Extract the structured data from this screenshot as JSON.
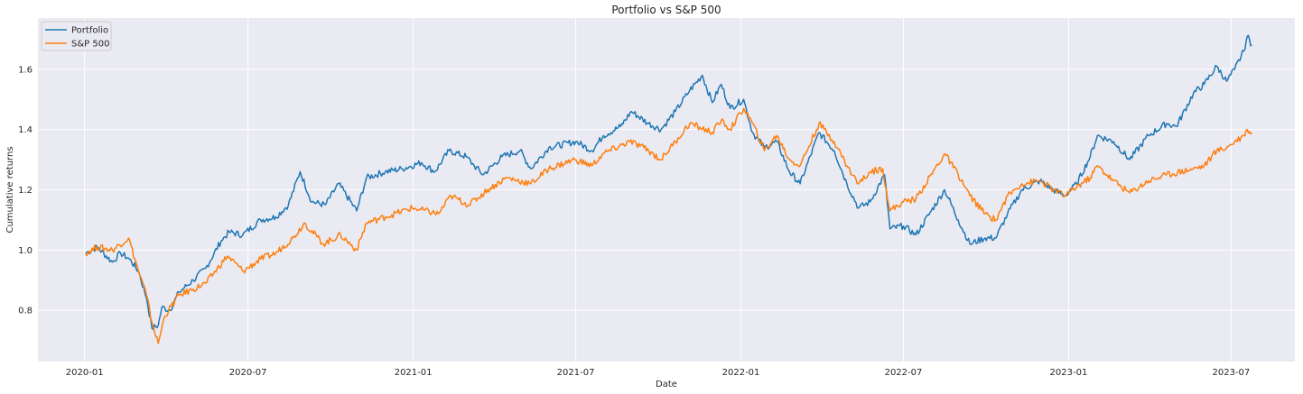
{
  "chart_data": {
    "type": "line",
    "title": "Portfolio vs S&P 500",
    "xlabel": "Date",
    "ylabel": "Cumulative returns",
    "x_ticks": [
      "2020-01",
      "2020-07",
      "2021-01",
      "2021-07",
      "2022-01",
      "2022-07",
      "2023-01",
      "2023-07"
    ],
    "y_ticks": [
      0.8,
      1.0,
      1.2,
      1.4,
      1.6
    ],
    "xlim": [
      "2019-11-10",
      "2023-09-10"
    ],
    "ylim": [
      0.63,
      1.77
    ],
    "grid": true,
    "legend_position": "top-left",
    "background_color": "#eaeaf2",
    "grid_color": "#ffffff",
    "series": [
      {
        "name": "Portfolio",
        "color": "#1f77b4",
        "points": [
          [
            "2020-01-02",
            0.99
          ],
          [
            "2020-01-15",
            1.01
          ],
          [
            "2020-02-01",
            0.96
          ],
          [
            "2020-02-10",
            0.99
          ],
          [
            "2020-02-20",
            0.97
          ],
          [
            "2020-03-01",
            0.93
          ],
          [
            "2020-03-10",
            0.84
          ],
          [
            "2020-03-16",
            0.74
          ],
          [
            "2020-03-23",
            0.75
          ],
          [
            "2020-03-27",
            0.81
          ],
          [
            "2020-04-05",
            0.8
          ],
          [
            "2020-04-15",
            0.86
          ],
          [
            "2020-05-01",
            0.9
          ],
          [
            "2020-05-15",
            0.94
          ],
          [
            "2020-06-01",
            1.03
          ],
          [
            "2020-06-10",
            1.06
          ],
          [
            "2020-06-25",
            1.05
          ],
          [
            "2020-07-15",
            1.1
          ],
          [
            "2020-08-01",
            1.11
          ],
          [
            "2020-08-15",
            1.15
          ],
          [
            "2020-08-28",
            1.26
          ],
          [
            "2020-09-10",
            1.16
          ],
          [
            "2020-09-25",
            1.15
          ],
          [
            "2020-10-10",
            1.22
          ],
          [
            "2020-10-30",
            1.13
          ],
          [
            "2020-11-10",
            1.24
          ],
          [
            "2020-12-01",
            1.26
          ],
          [
            "2020-12-20",
            1.27
          ],
          [
            "2021-01-10",
            1.29
          ],
          [
            "2021-01-25",
            1.26
          ],
          [
            "2021-02-10",
            1.33
          ],
          [
            "2021-03-01",
            1.31
          ],
          [
            "2021-03-10",
            1.28
          ],
          [
            "2021-03-20",
            1.25
          ],
          [
            "2021-04-10",
            1.31
          ],
          [
            "2021-04-30",
            1.33
          ],
          [
            "2021-05-12",
            1.27
          ],
          [
            "2021-06-01",
            1.34
          ],
          [
            "2021-07-01",
            1.36
          ],
          [
            "2021-07-19",
            1.33
          ],
          [
            "2021-08-01",
            1.38
          ],
          [
            "2021-08-20",
            1.41
          ],
          [
            "2021-09-01",
            1.46
          ],
          [
            "2021-09-20",
            1.42
          ],
          [
            "2021-10-04",
            1.4
          ],
          [
            "2021-10-20",
            1.46
          ],
          [
            "2021-11-05",
            1.53
          ],
          [
            "2021-11-19",
            1.58
          ],
          [
            "2021-11-30",
            1.49
          ],
          [
            "2021-12-10",
            1.55
          ],
          [
            "2021-12-20",
            1.47
          ],
          [
            "2022-01-04",
            1.5
          ],
          [
            "2022-01-14",
            1.39
          ],
          [
            "2022-01-27",
            1.34
          ],
          [
            "2022-02-10",
            1.36
          ],
          [
            "2022-02-24",
            1.26
          ],
          [
            "2022-03-08",
            1.22
          ],
          [
            "2022-03-29",
            1.39
          ],
          [
            "2022-04-15",
            1.33
          ],
          [
            "2022-04-29",
            1.22
          ],
          [
            "2022-05-12",
            1.14
          ],
          [
            "2022-05-25",
            1.16
          ],
          [
            "2022-06-10",
            1.25
          ],
          [
            "2022-06-16",
            1.07
          ],
          [
            "2022-07-01",
            1.08
          ],
          [
            "2022-07-15",
            1.05
          ],
          [
            "2022-08-01",
            1.13
          ],
          [
            "2022-08-16",
            1.2
          ],
          [
            "2022-08-31",
            1.1
          ],
          [
            "2022-09-13",
            1.02
          ],
          [
            "2022-09-30",
            1.04
          ],
          [
            "2022-10-12",
            1.04
          ],
          [
            "2022-10-25",
            1.12
          ],
          [
            "2022-11-10",
            1.2
          ],
          [
            "2022-11-30",
            1.23
          ],
          [
            "2022-12-15",
            1.2
          ],
          [
            "2022-12-28",
            1.18
          ],
          [
            "2023-01-10",
            1.22
          ],
          [
            "2023-01-25",
            1.31
          ],
          [
            "2023-02-02",
            1.38
          ],
          [
            "2023-02-20",
            1.36
          ],
          [
            "2023-03-10",
            1.3
          ],
          [
            "2023-03-31",
            1.38
          ],
          [
            "2023-04-20",
            1.42
          ],
          [
            "2023-05-01",
            1.41
          ],
          [
            "2023-05-20",
            1.52
          ],
          [
            "2023-06-01",
            1.55
          ],
          [
            "2023-06-15",
            1.61
          ],
          [
            "2023-06-26",
            1.56
          ],
          [
            "2023-07-05",
            1.6
          ],
          [
            "2023-07-15",
            1.66
          ],
          [
            "2023-07-19",
            1.71
          ],
          [
            "2023-07-24",
            1.68
          ]
        ]
      },
      {
        "name": "S&P 500",
        "color": "#ff7f0e",
        "points": [
          [
            "2020-01-02",
            0.99
          ],
          [
            "2020-01-15",
            1.01
          ],
          [
            "2020-02-01",
            1.0
          ],
          [
            "2020-02-19",
            1.04
          ],
          [
            "2020-03-01",
            0.93
          ],
          [
            "2020-03-10",
            0.85
          ],
          [
            "2020-03-16",
            0.76
          ],
          [
            "2020-03-23",
            0.69
          ],
          [
            "2020-03-30",
            0.78
          ],
          [
            "2020-04-15",
            0.85
          ],
          [
            "2020-05-01",
            0.87
          ],
          [
            "2020-05-15",
            0.89
          ],
          [
            "2020-06-08",
            0.98
          ],
          [
            "2020-06-26",
            0.93
          ],
          [
            "2020-07-15",
            0.97
          ],
          [
            "2020-08-01",
            0.99
          ],
          [
            "2020-08-20",
            1.04
          ],
          [
            "2020-09-02",
            1.09
          ],
          [
            "2020-09-23",
            1.02
          ],
          [
            "2020-10-12",
            1.05
          ],
          [
            "2020-10-30",
            1.0
          ],
          [
            "2020-11-10",
            1.09
          ],
          [
            "2020-12-01",
            1.11
          ],
          [
            "2020-12-31",
            1.14
          ],
          [
            "2021-01-29",
            1.12
          ],
          [
            "2021-02-12",
            1.18
          ],
          [
            "2021-03-04",
            1.15
          ],
          [
            "2021-03-25",
            1.2
          ],
          [
            "2021-04-15",
            1.24
          ],
          [
            "2021-05-12",
            1.22
          ],
          [
            "2021-06-01",
            1.27
          ],
          [
            "2021-06-30",
            1.3
          ],
          [
            "2021-07-19",
            1.28
          ],
          [
            "2021-08-01",
            1.32
          ],
          [
            "2021-08-30",
            1.36
          ],
          [
            "2021-09-15",
            1.34
          ],
          [
            "2021-10-04",
            1.3
          ],
          [
            "2021-10-20",
            1.36
          ],
          [
            "2021-11-05",
            1.42
          ],
          [
            "2021-11-30",
            1.39
          ],
          [
            "2021-12-10",
            1.43
          ],
          [
            "2021-12-20",
            1.4
          ],
          [
            "2022-01-04",
            1.47
          ],
          [
            "2022-01-14",
            1.42
          ],
          [
            "2022-01-27",
            1.33
          ],
          [
            "2022-02-10",
            1.38
          ],
          [
            "2022-02-24",
            1.3
          ],
          [
            "2022-03-08",
            1.28
          ],
          [
            "2022-03-29",
            1.42
          ],
          [
            "2022-04-15",
            1.36
          ],
          [
            "2022-04-29",
            1.28
          ],
          [
            "2022-05-12",
            1.22
          ],
          [
            "2022-05-25",
            1.26
          ],
          [
            "2022-06-08",
            1.27
          ],
          [
            "2022-06-16",
            1.13
          ],
          [
            "2022-07-01",
            1.16
          ],
          [
            "2022-07-15",
            1.17
          ],
          [
            "2022-08-16",
            1.32
          ],
          [
            "2022-08-31",
            1.25
          ],
          [
            "2022-09-13",
            1.18
          ],
          [
            "2022-09-30",
            1.12
          ],
          [
            "2022-10-12",
            1.1
          ],
          [
            "2022-10-25",
            1.18
          ],
          [
            "2022-11-10",
            1.22
          ],
          [
            "2022-11-30",
            1.23
          ],
          [
            "2022-12-15",
            1.2
          ],
          [
            "2022-12-28",
            1.18
          ],
          [
            "2023-01-10",
            1.21
          ],
          [
            "2023-01-25",
            1.24
          ],
          [
            "2023-02-02",
            1.28
          ],
          [
            "2023-02-20",
            1.23
          ],
          [
            "2023-03-10",
            1.19
          ],
          [
            "2023-03-31",
            1.23
          ],
          [
            "2023-04-20",
            1.25
          ],
          [
            "2023-05-20",
            1.27
          ],
          [
            "2023-06-01",
            1.28
          ],
          [
            "2023-06-15",
            1.33
          ],
          [
            "2023-06-26",
            1.34
          ],
          [
            "2023-07-05",
            1.36
          ],
          [
            "2023-07-15",
            1.38
          ],
          [
            "2023-07-19",
            1.4
          ],
          [
            "2023-07-24",
            1.39
          ]
        ]
      }
    ]
  }
}
